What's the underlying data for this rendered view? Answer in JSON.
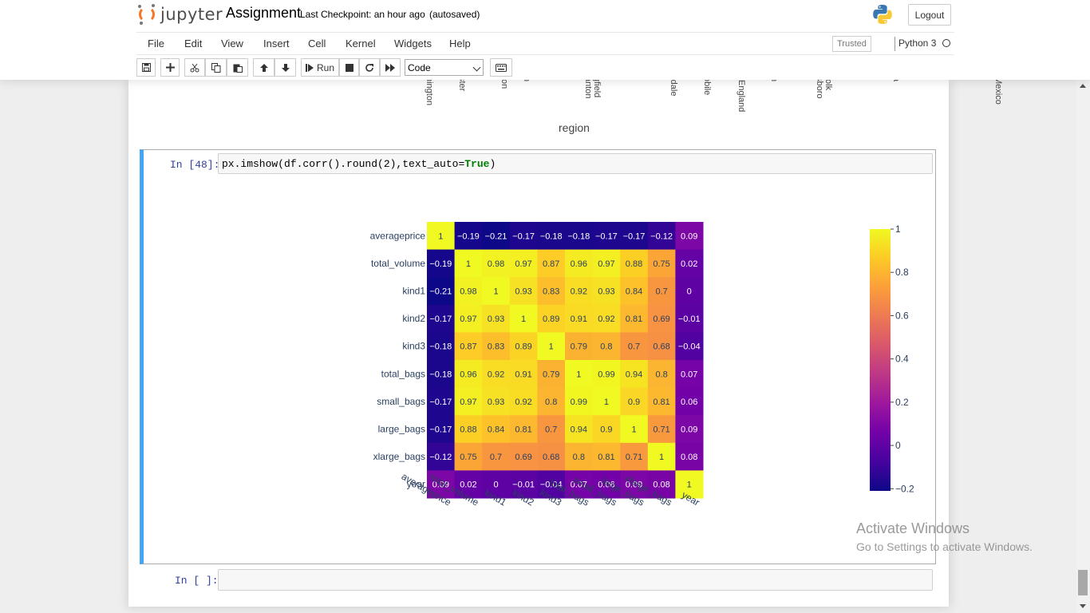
{
  "header": {
    "logo_text": "jupyter",
    "notebook_name": "Assignment",
    "checkpoint": "Last Checkpoint: an hour ago",
    "autosave": "(autosaved)",
    "logout_label": "Logout"
  },
  "menu": {
    "items": [
      "File",
      "Edit",
      "View",
      "Insert",
      "Cell",
      "Kernel",
      "Widgets",
      "Help"
    ],
    "trusted": "Trusted",
    "kernel": "Python 3"
  },
  "toolbar": {
    "run_label": "Run",
    "cell_type": "Code"
  },
  "previous_output": {
    "region_tick_labels": [
      "hington",
      "ster",
      "ton",
      "n",
      "gfield\nanton",
      "rdale",
      "obile",
      "England",
      "n",
      "folk\nsboro",
      "a",
      "Mexico"
    ],
    "axis_title": "region"
  },
  "cell48": {
    "prompt": "In [48]:",
    "code_prefix": "px.imshow(df.corr().round(2),text_auto=",
    "code_keyword": "True",
    "code_suffix": ")"
  },
  "cell_empty": {
    "prompt": "In [ ]:"
  },
  "chart_data": {
    "type": "heatmap",
    "x": [
      "averageprice",
      "total_volume",
      "kind1",
      "kind2",
      "kind3",
      "total_bags",
      "small_bags",
      "large_bags",
      "xlarge_bags",
      "year"
    ],
    "y": [
      "averageprice",
      "total_volume",
      "kind1",
      "kind2",
      "kind3",
      "total_bags",
      "small_bags",
      "large_bags",
      "xlarge_bags",
      "year"
    ],
    "z": [
      [
        1,
        -0.19,
        -0.21,
        -0.17,
        -0.18,
        -0.18,
        -0.17,
        -0.17,
        -0.12,
        0.09
      ],
      [
        -0.19,
        1,
        0.98,
        0.97,
        0.87,
        0.96,
        0.97,
        0.88,
        0.75,
        0.02
      ],
      [
        -0.21,
        0.98,
        1,
        0.93,
        0.83,
        0.92,
        0.93,
        0.84,
        0.7,
        0
      ],
      [
        -0.17,
        0.97,
        0.93,
        1,
        0.89,
        0.91,
        0.92,
        0.81,
        0.69,
        -0.01
      ],
      [
        -0.18,
        0.87,
        0.83,
        0.89,
        1,
        0.79,
        0.8,
        0.7,
        0.68,
        -0.04
      ],
      [
        -0.18,
        0.96,
        0.92,
        0.91,
        0.79,
        1,
        0.99,
        0.94,
        0.8,
        0.07
      ],
      [
        -0.17,
        0.97,
        0.93,
        0.92,
        0.8,
        0.99,
        1,
        0.9,
        0.81,
        0.06
      ],
      [
        -0.17,
        0.88,
        0.84,
        0.81,
        0.7,
        0.94,
        0.9,
        1,
        0.71,
        0.09
      ],
      [
        -0.12,
        0.75,
        0.7,
        0.69,
        0.68,
        0.8,
        0.81,
        0.71,
        1,
        0.08
      ],
      [
        0.09,
        0.02,
        0,
        -0.01,
        -0.04,
        0.07,
        0.06,
        0.09,
        0.08,
        1
      ]
    ],
    "colorscale": "plasma",
    "zrange": [
      -0.21,
      1
    ],
    "colorbar_ticks": [
      1,
      0.8,
      0.6,
      0.4,
      0.2,
      0,
      -0.2
    ],
    "text_auto": true
  },
  "watermark": {
    "line1": "Activate Windows",
    "line2": "Go to Settings to activate Windows."
  }
}
